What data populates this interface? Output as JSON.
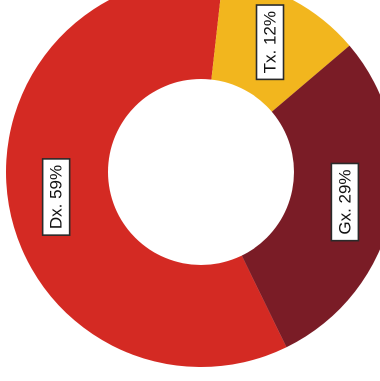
{
  "chart_data": {
    "type": "pie",
    "variant": "donut",
    "slices": [
      {
        "label": "Dx. 59%",
        "value": 59,
        "color": "#d42a23"
      },
      {
        "label": "Tx. 12%",
        "value": 12,
        "color": "#f2b61e"
      },
      {
        "label": "Gx. 29%",
        "value": 29,
        "color": "#7a1c26"
      }
    ],
    "legend": "none",
    "labels_placement": "on-slices, rotated"
  }
}
